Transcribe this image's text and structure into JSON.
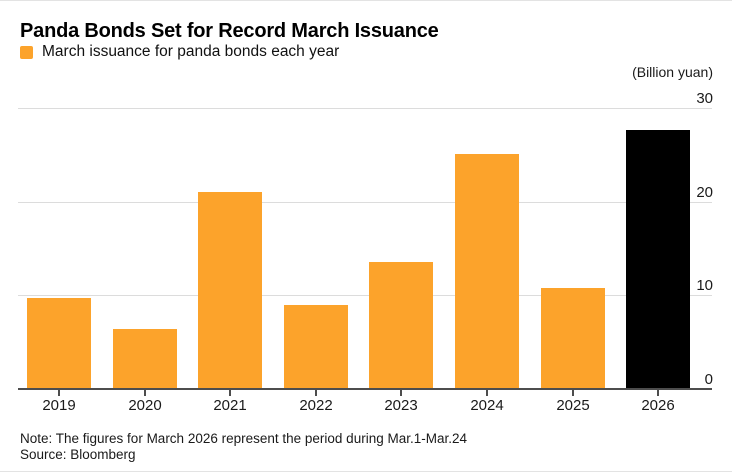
{
  "header": {
    "title": "Panda Bonds Set for Record March Issuance",
    "legend_label": "March issuance for panda bonds each year",
    "unit_label": "(Billion yuan)"
  },
  "footer": {
    "note": "Note: The figures for March 2026 represent the period during Mar.1-Mar.24",
    "source": "Source: Bloomberg"
  },
  "colors": {
    "bar_default": "#FCA32B",
    "bar_highlight": "#000000",
    "gridline": "#DCDCDC",
    "axis_line": "#4D4D4D",
    "title_text": "#000000",
    "body_text": "#1A1A1A"
  },
  "chart_data": {
    "type": "bar",
    "title": "Panda Bonds Set for Record March Issuance",
    "legend": [
      "March issuance for panda bonds each year"
    ],
    "legend_position": "top-left",
    "unit": "(Billion yuan)",
    "categories": [
      "2019",
      "2020",
      "2021",
      "2022",
      "2023",
      "2024",
      "2025",
      "2026"
    ],
    "values": [
      9.7,
      6.4,
      21.0,
      8.9,
      13.5,
      25.1,
      10.8,
      27.7
    ],
    "highlight_category": "2026",
    "xlabel": "",
    "ylabel": "(Billion yuan)",
    "ylim": [
      0,
      30
    ],
    "yticks": [
      0,
      10,
      20,
      30
    ],
    "grid": "horizontal",
    "note": "Note: The figures for March 2026 represent the period during Mar.1-Mar.24",
    "source": "Source: Bloomberg"
  }
}
